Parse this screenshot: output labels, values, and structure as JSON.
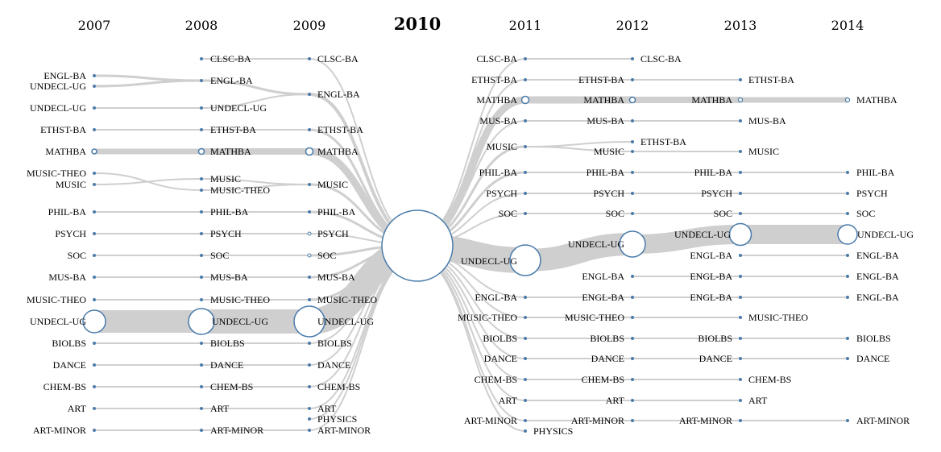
{
  "years": [
    "2007",
    "2008",
    "2009",
    "2010",
    "2011",
    "2012",
    "2013",
    "2014"
  ],
  "center_year": "2010",
  "labels": {
    "y2007": [
      "ENGL-BA",
      "UNDECL-UG",
      "UNDECL-UG",
      "ETHST-BA",
      "MATHBA",
      "MUSIC-THEO",
      "MUSIC",
      "PHIL-BA",
      "PSYCH",
      "SOC",
      "MUS-BA",
      "MUSIC-THEO",
      "UNDECL-UG",
      "BIOLBS",
      "DANCE",
      "CHEM-BS",
      "ART",
      "ART-MINOR"
    ],
    "y2008": [
      "CLSC-BA",
      "ENGL-BA",
      "UNDECL-UG",
      "ETHST-BA",
      "MATHBA",
      "MUSIC",
      "MUSIC-THEO",
      "PHIL-BA",
      "PSYCH",
      "SOC",
      "MUS-BA",
      "MUSIC-THEO",
      "UNDECL-UG",
      "BIOLBS",
      "DANCE",
      "CHEM-BS",
      "ART",
      "ART-MINOR"
    ],
    "y2009": [
      "CLSC-BA",
      "ENGL-BA",
      "ETHST-BA",
      "MATHBA",
      "MUSIC",
      "PHIL-BA",
      "PSYCH",
      "SOC",
      "MUS-BA",
      "MUSIC-THEO",
      "UNDECL-UG",
      "BIOLBS",
      "DANCE",
      "CHEM-BS",
      "ART",
      "PHYSICS",
      "ART-MINOR"
    ],
    "y2011": [
      "CLSC-BA",
      "ETHST-BA",
      "MATHBA",
      "MUS-BA",
      "MUSIC",
      "PHIL-BA",
      "PSYCH",
      "SOC",
      "UNDECL-UG",
      "ENGL-BA",
      "MUSIC-THEO",
      "BIOLBS",
      "DANCE",
      "CHEM-BS",
      "ART",
      "ART-MINOR",
      "PHYSICS"
    ],
    "y2012": [
      "CLSC-BA",
      "ETHST-BA",
      "MATHBA",
      "MUS-BA",
      "ETHST-BA",
      "MUSIC",
      "PHIL-BA",
      "PSYCH",
      "SOC",
      "UNDECL-UG",
      "ENGL-BA",
      "ENGL-BA",
      "MUSIC-THEO",
      "BIOLBS",
      "DANCE",
      "CHEM-BS",
      "ART",
      "ART-MINOR"
    ],
    "y2013": [
      "ETHST-BA",
      "MATHBA",
      "MUS-BA",
      "MUSIC",
      "PHIL-BA",
      "PSYCH",
      "SOC",
      "UNDECL-UG",
      "ENGL-BA",
      "ENGL-BA",
      "ENGL-BA",
      "MUSIC-THEO",
      "BIOLBS",
      "DANCE",
      "CHEM-BS",
      "ART",
      "ART-MINOR"
    ],
    "y2014": [
      "MATHBA",
      "PHIL-BA",
      "PSYCH",
      "SOC",
      "UNDECL-UG",
      "ENGL-BA",
      "ENGL-BA",
      "ENGL-BA",
      "BIOLBS",
      "DANCE",
      "ART-MINOR"
    ]
  },
  "colors": {
    "flow": "#cfcfcf",
    "node_stroke": "#4a7bab",
    "node_fill": "#ffffff",
    "dot": "#4a7bab"
  }
}
